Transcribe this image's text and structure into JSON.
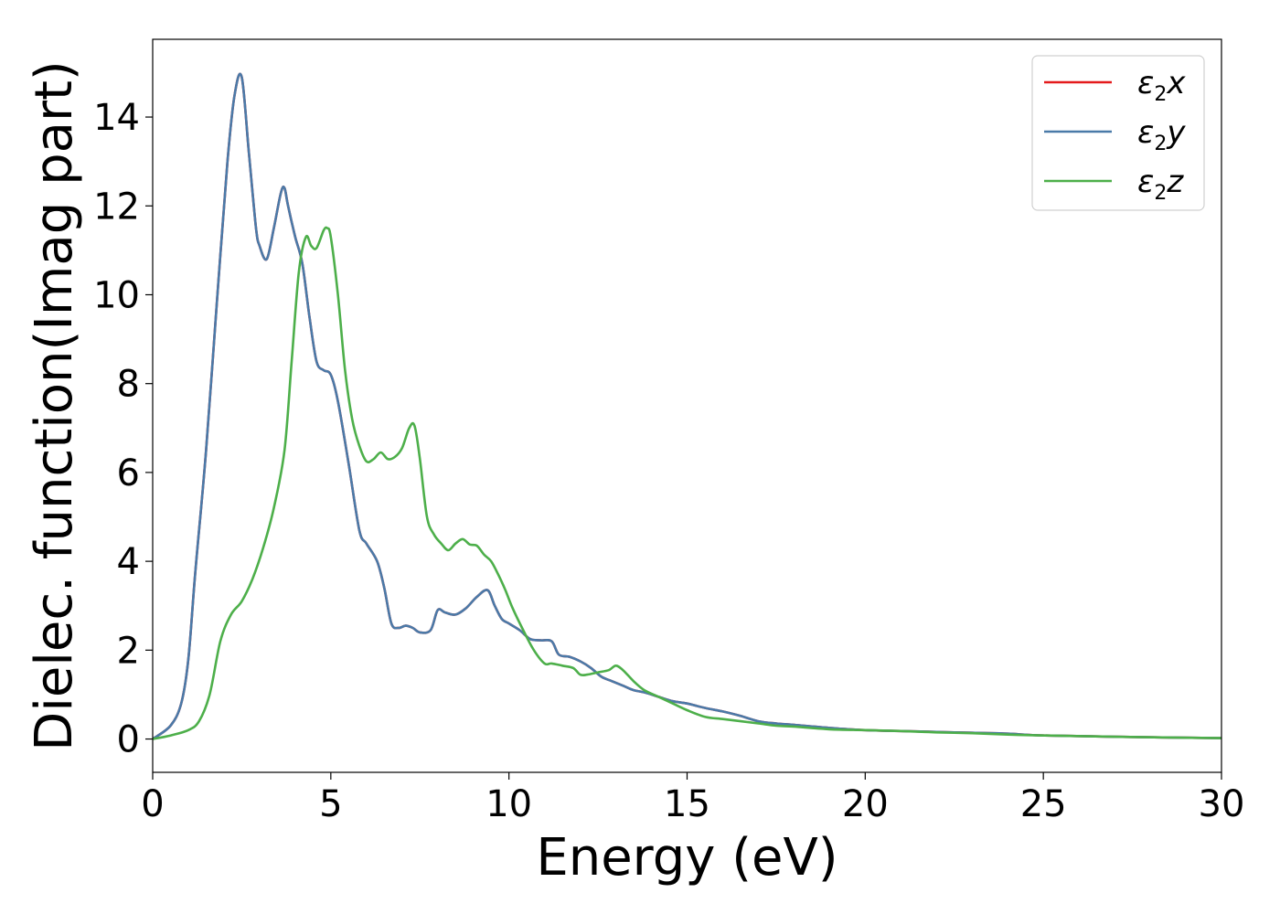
{
  "chart_data": {
    "type": "line",
    "xlabel": "Energy (eV)",
    "ylabel": "Dielec. function(Imag part)",
    "xlim": [
      0,
      30
    ],
    "ylim": [
      -0.75,
      15.75
    ],
    "xticks": [
      0,
      5,
      10,
      15,
      20,
      25,
      30
    ],
    "yticks": [
      0,
      2,
      4,
      6,
      8,
      10,
      12,
      14
    ],
    "grid": false,
    "legend_position": "top-right",
    "series": [
      {
        "name": "ε2x",
        "legend_main": "ε",
        "legend_sub": "2",
        "legend_tail": "x",
        "color": "#e41a1c",
        "x": [
          0,
          0.5,
          0.8,
          1.0,
          1.2,
          1.5,
          1.8,
          2.1,
          2.3,
          2.5,
          2.7,
          2.9,
          3.0,
          3.2,
          3.4,
          3.6,
          3.7,
          3.8,
          4.0,
          4.2,
          4.4,
          4.6,
          4.8,
          5.0,
          5.2,
          5.5,
          5.8,
          6.0,
          6.3,
          6.5,
          6.7,
          6.9,
          7.1,
          7.3,
          7.5,
          7.8,
          8.0,
          8.2,
          8.5,
          8.8,
          9.1,
          9.4,
          9.6,
          9.8,
          10.0,
          10.3,
          10.6,
          10.9,
          11.2,
          11.4,
          11.7,
          12.0,
          12.3,
          12.6,
          12.9,
          13.2,
          13.5,
          13.8,
          14.2,
          14.6,
          15.0,
          15.5,
          16.0,
          16.5,
          17.0,
          17.5,
          18.0,
          19.0,
          20.0,
          21.0,
          22.0,
          23.0,
          24.0,
          25.0,
          27.0,
          30.0
        ],
        "y": [
          0.0,
          0.3,
          0.8,
          1.8,
          3.8,
          6.5,
          9.8,
          13.0,
          14.5,
          14.9,
          13.2,
          11.5,
          11.1,
          10.8,
          11.5,
          12.3,
          12.4,
          12.0,
          11.3,
          10.7,
          9.5,
          8.5,
          8.3,
          8.2,
          7.6,
          6.2,
          4.7,
          4.4,
          4.0,
          3.4,
          2.6,
          2.5,
          2.55,
          2.5,
          2.4,
          2.45,
          2.9,
          2.85,
          2.8,
          2.95,
          3.2,
          3.35,
          3.0,
          2.7,
          2.6,
          2.45,
          2.25,
          2.22,
          2.2,
          1.9,
          1.85,
          1.75,
          1.6,
          1.4,
          1.3,
          1.2,
          1.1,
          1.05,
          0.95,
          0.85,
          0.8,
          0.7,
          0.62,
          0.52,
          0.4,
          0.35,
          0.32,
          0.25,
          0.2,
          0.18,
          0.16,
          0.14,
          0.12,
          0.08,
          0.05,
          0.02
        ]
      },
      {
        "name": "ε2y",
        "legend_main": "ε",
        "legend_sub": "2",
        "legend_tail": "y",
        "color": "#4a7aa8",
        "x": [
          0,
          0.5,
          0.8,
          1.0,
          1.2,
          1.5,
          1.8,
          2.1,
          2.3,
          2.5,
          2.7,
          2.9,
          3.0,
          3.2,
          3.4,
          3.6,
          3.7,
          3.8,
          4.0,
          4.2,
          4.4,
          4.6,
          4.8,
          5.0,
          5.2,
          5.5,
          5.8,
          6.0,
          6.3,
          6.5,
          6.7,
          6.9,
          7.1,
          7.3,
          7.5,
          7.8,
          8.0,
          8.2,
          8.5,
          8.8,
          9.1,
          9.4,
          9.6,
          9.8,
          10.0,
          10.3,
          10.6,
          10.9,
          11.2,
          11.4,
          11.7,
          12.0,
          12.3,
          12.6,
          12.9,
          13.2,
          13.5,
          13.8,
          14.2,
          14.6,
          15.0,
          15.5,
          16.0,
          16.5,
          17.0,
          17.5,
          18.0,
          19.0,
          20.0,
          21.0,
          22.0,
          23.0,
          24.0,
          25.0,
          27.0,
          30.0
        ],
        "y": [
          0.0,
          0.3,
          0.8,
          1.8,
          3.8,
          6.5,
          9.8,
          13.0,
          14.5,
          14.9,
          13.2,
          11.5,
          11.1,
          10.8,
          11.5,
          12.3,
          12.4,
          12.0,
          11.3,
          10.7,
          9.5,
          8.5,
          8.3,
          8.2,
          7.6,
          6.2,
          4.7,
          4.4,
          4.0,
          3.4,
          2.6,
          2.5,
          2.55,
          2.5,
          2.4,
          2.45,
          2.9,
          2.85,
          2.8,
          2.95,
          3.2,
          3.35,
          3.0,
          2.7,
          2.6,
          2.45,
          2.25,
          2.22,
          2.2,
          1.9,
          1.85,
          1.75,
          1.6,
          1.4,
          1.3,
          1.2,
          1.1,
          1.05,
          0.95,
          0.85,
          0.8,
          0.7,
          0.62,
          0.52,
          0.4,
          0.35,
          0.32,
          0.25,
          0.2,
          0.18,
          0.16,
          0.14,
          0.12,
          0.08,
          0.05,
          0.02
        ]
      },
      {
        "name": "ε2z",
        "legend_main": "ε",
        "legend_sub": "2",
        "legend_tail": "z",
        "color": "#4daf4a",
        "x": [
          0,
          0.5,
          1.0,
          1.3,
          1.6,
          1.9,
          2.2,
          2.5,
          2.8,
          3.1,
          3.4,
          3.7,
          3.9,
          4.1,
          4.3,
          4.45,
          4.6,
          4.8,
          4.9,
          5.0,
          5.2,
          5.4,
          5.6,
          5.8,
          6.0,
          6.2,
          6.4,
          6.6,
          6.8,
          7.0,
          7.2,
          7.35,
          7.5,
          7.7,
          7.9,
          8.1,
          8.3,
          8.5,
          8.7,
          8.9,
          9.1,
          9.3,
          9.5,
          9.7,
          9.9,
          10.1,
          10.4,
          10.7,
          11.0,
          11.2,
          11.5,
          11.8,
          12.0,
          12.2,
          12.5,
          12.8,
          13.0,
          13.2,
          13.5,
          13.8,
          14.2,
          14.6,
          15.0,
          15.5,
          16.0,
          16.5,
          17.0,
          17.5,
          18.0,
          19.0,
          20.0,
          21.0,
          22.0,
          23.0,
          24.0,
          25.0,
          27.0,
          30.0
        ],
        "y": [
          0.0,
          0.08,
          0.2,
          0.4,
          1.0,
          2.2,
          2.8,
          3.1,
          3.6,
          4.3,
          5.2,
          6.5,
          8.5,
          10.5,
          11.3,
          11.1,
          11.05,
          11.45,
          11.5,
          11.3,
          10.0,
          8.3,
          7.2,
          6.6,
          6.25,
          6.3,
          6.45,
          6.3,
          6.35,
          6.55,
          7.0,
          7.05,
          6.3,
          5.0,
          4.6,
          4.4,
          4.25,
          4.4,
          4.5,
          4.38,
          4.35,
          4.15,
          4.0,
          3.7,
          3.35,
          2.95,
          2.45,
          2.0,
          1.7,
          1.7,
          1.65,
          1.6,
          1.45,
          1.45,
          1.5,
          1.55,
          1.65,
          1.55,
          1.3,
          1.1,
          0.95,
          0.8,
          0.65,
          0.5,
          0.45,
          0.4,
          0.35,
          0.3,
          0.28,
          0.22,
          0.2,
          0.18,
          0.15,
          0.13,
          0.1,
          0.08,
          0.05,
          0.02
        ]
      }
    ]
  }
}
